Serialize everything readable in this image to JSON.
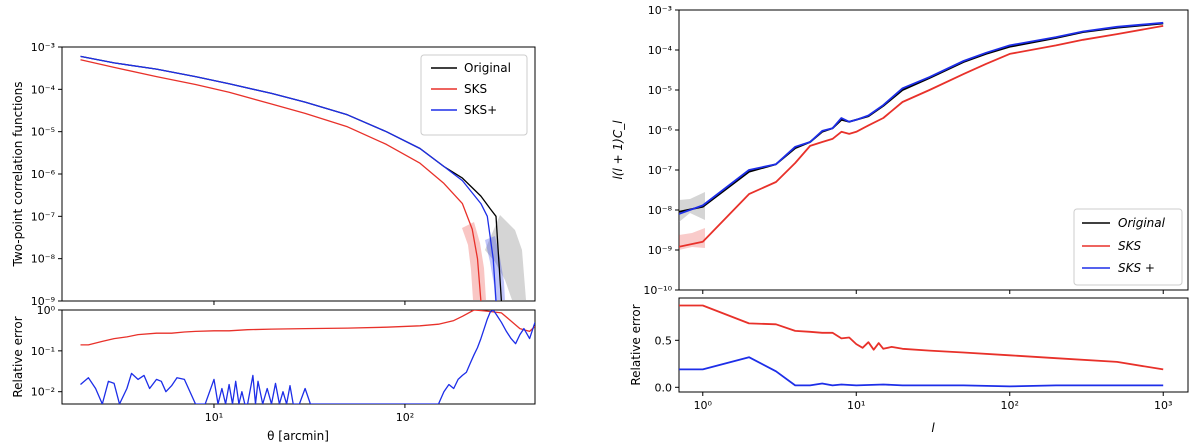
{
  "chart_data": [
    {
      "type": "line",
      "panel": "left-top",
      "xlabel": "θ [arcmin]",
      "ylabel": "Two-point correlation functions",
      "xscale": "log",
      "yscale": "log",
      "xlim": [
        1.6,
        480
      ],
      "ylim": [
        1e-09,
        0.001
      ],
      "xticks": [
        {
          "v": 10,
          "label": "10¹"
        },
        {
          "v": 100,
          "label": "10²"
        }
      ],
      "yticks": [
        {
          "v": 1e-09,
          "label": "10⁻⁹"
        },
        {
          "v": 1e-08,
          "label": "10⁻⁸"
        },
        {
          "v": 1e-07,
          "label": "10⁻⁷"
        },
        {
          "v": 1e-06,
          "label": "10⁻⁶"
        },
        {
          "v": 1e-05,
          "label": "10⁻⁵"
        },
        {
          "v": 0.0001,
          "label": "10⁻⁴"
        },
        {
          "v": 0.001,
          "label": "10⁻³"
        }
      ],
      "legend": {
        "position": "top-right",
        "entries": [
          "Original",
          "SKS",
          "SKS+"
        ]
      },
      "series": [
        {
          "name": "Original",
          "color": "#000000",
          "x": [
            2,
            3,
            5,
            8,
            12,
            20,
            30,
            50,
            80,
            120,
            160,
            200,
            250,
            280,
            300,
            310,
            320
          ],
          "y": [
            0.0006,
            0.00042,
            0.0003,
            0.0002,
            0.000135,
            8e-05,
            5e-05,
            2.5e-05,
            1e-05,
            4e-06,
            1.5e-06,
            8e-07,
            3e-07,
            1.5e-07,
            1e-07,
            1e-08,
            1e-09
          ]
        },
        {
          "name": "SKS",
          "color": "#e8312a",
          "x": [
            2,
            3,
            5,
            8,
            12,
            20,
            30,
            50,
            80,
            120,
            160,
            200,
            225,
            240,
            250
          ],
          "y": [
            0.0005,
            0.00033,
            0.0002,
            0.00013,
            8.5e-05,
            4.5e-05,
            2.7e-05,
            1.3e-05,
            5e-06,
            1.8e-06,
            6e-07,
            2e-07,
            5e-08,
            1e-08,
            1e-09
          ]
        },
        {
          "name": "SKS+",
          "color": "#1d2ee8",
          "x": [
            2,
            3,
            5,
            8,
            12,
            20,
            30,
            50,
            80,
            120,
            160,
            200,
            250,
            270,
            290,
            300
          ],
          "y": [
            0.0006,
            0.00042,
            0.0003,
            0.0002,
            0.000135,
            8e-05,
            5e-05,
            2.5e-05,
            1e-05,
            4e-06,
            1.5e-06,
            7e-07,
            2e-07,
            1e-07,
            1e-08,
            1e-09
          ]
        }
      ]
    },
    {
      "type": "line",
      "panel": "left-bottom",
      "xlabel": "θ [arcmin]",
      "ylabel": "Relative error",
      "xscale": "log",
      "yscale": "log",
      "xlim": [
        1.6,
        480
      ],
      "ylim": [
        0.005,
        1
      ],
      "xticks": [
        {
          "v": 10,
          "label": "10¹"
        },
        {
          "v": 100,
          "label": "10²"
        }
      ],
      "yticks": [
        {
          "v": 0.01,
          "label": "10⁻²"
        },
        {
          "v": 0.1,
          "label": "10⁻¹"
        },
        {
          "v": 1,
          "label": "10⁰"
        }
      ],
      "series": [
        {
          "name": "SKS",
          "color": "#e8312a",
          "x": [
            2,
            2.2,
            2.6,
            3,
            3.5,
            4,
            5,
            6,
            7,
            8,
            10,
            12,
            15,
            20,
            30,
            50,
            80,
            120,
            150,
            180,
            200,
            230,
            260,
            290,
            320,
            350,
            400,
            450,
            480
          ],
          "y": [
            0.14,
            0.14,
            0.17,
            0.2,
            0.22,
            0.25,
            0.27,
            0.27,
            0.29,
            0.3,
            0.31,
            0.31,
            0.33,
            0.34,
            0.35,
            0.36,
            0.38,
            0.41,
            0.45,
            0.55,
            0.7,
            1.0,
            0.95,
            0.9,
            0.85,
            0.6,
            0.35,
            0.3,
            0.4
          ]
        },
        {
          "name": "SKS+",
          "color": "#1d2ee8",
          "x": [
            2,
            2.2,
            2.4,
            2.6,
            2.8,
            3,
            3.2,
            3.5,
            3.7,
            4,
            4.3,
            4.6,
            5,
            5.3,
            5.6,
            6,
            6.4,
            7,
            8,
            9,
            10,
            10.5,
            11,
            11.5,
            12,
            12.5,
            13,
            13.5,
            14,
            14.5,
            15,
            16,
            16.5,
            17,
            18,
            19,
            20,
            21,
            22,
            23,
            24,
            25,
            26,
            28,
            30,
            32,
            150,
            160,
            170,
            180,
            190,
            200,
            210,
            220,
            230,
            240,
            250,
            260,
            270,
            280,
            290,
            300,
            320,
            340,
            360,
            380,
            400,
            420,
            450,
            480
          ],
          "y": [
            0.015,
            0.022,
            0.012,
            0.005,
            0.018,
            0.016,
            0.005,
            0.012,
            0.028,
            0.02,
            0.025,
            0.012,
            0.02,
            0.018,
            0.01,
            0.014,
            0.022,
            0.02,
            0.005,
            0.005,
            0.02,
            0.005,
            0.012,
            0.005,
            0.015,
            0.005,
            0.018,
            0.005,
            0.01,
            0.005,
            0.005,
            0.025,
            0.005,
            0.018,
            0.005,
            0.012,
            0.005,
            0.016,
            0.005,
            0.01,
            0.005,
            0.014,
            0.005,
            0.005,
            0.012,
            0.005,
            0.005,
            0.01,
            0.015,
            0.012,
            0.02,
            0.025,
            0.03,
            0.05,
            0.08,
            0.12,
            0.2,
            0.35,
            0.6,
            0.9,
            1.0,
            0.8,
            0.5,
            0.3,
            0.2,
            0.15,
            0.25,
            0.35,
            0.2,
            0.5
          ]
        }
      ]
    },
    {
      "type": "line",
      "panel": "right-top",
      "xlabel": "l",
      "ylabel": "l(l + 1)C_l",
      "xscale": "log",
      "yscale": "log",
      "xlim": [
        0.7,
        1450
      ],
      "ylim": [
        1e-10,
        0.001
      ],
      "xticks": [
        {
          "v": 1,
          "label": "10⁰"
        },
        {
          "v": 10,
          "label": "10¹"
        },
        {
          "v": 100,
          "label": "10²"
        },
        {
          "v": 1000,
          "label": "10³"
        }
      ],
      "yticks": [
        {
          "v": 1e-10,
          "label": "10⁻¹⁰"
        },
        {
          "v": 1e-09,
          "label": "10⁻⁹"
        },
        {
          "v": 1e-08,
          "label": "10⁻⁸"
        },
        {
          "v": 1e-07,
          "label": "10⁻⁷"
        },
        {
          "v": 1e-06,
          "label": "10⁻⁶"
        },
        {
          "v": 1e-05,
          "label": "10⁻⁵"
        },
        {
          "v": 0.0001,
          "label": "10⁻⁴"
        },
        {
          "v": 0.001,
          "label": "10⁻³"
        }
      ],
      "legend": {
        "position": "bottom-right",
        "entries": [
          "Original",
          "SKS",
          "SKS +"
        ]
      },
      "series": [
        {
          "name": "Original",
          "color": "#000000",
          "x": [
            0.7,
            1,
            2,
            3,
            4,
            5,
            6,
            7,
            8,
            9,
            10,
            12,
            15,
            20,
            30,
            50,
            70,
            100,
            200,
            300,
            500,
            1000
          ],
          "y": [
            9e-09,
            1.2e-08,
            9e-08,
            1.4e-07,
            3.5e-07,
            5e-07,
            9e-07,
            1.1e-06,
            1.8e-06,
            1.6e-06,
            1.8e-06,
            2.2e-06,
            4e-06,
            1e-05,
            2e-05,
            5e-05,
            8e-05,
            0.00012,
            0.0002,
            0.00028,
            0.00036,
            0.00046
          ]
        },
        {
          "name": "SKS",
          "color": "#e8312a",
          "x": [
            0.7,
            1,
            2,
            3,
            4,
            5,
            6,
            7,
            8,
            9,
            10,
            12,
            15,
            20,
            30,
            50,
            70,
            100,
            200,
            300,
            500,
            1000
          ],
          "y": [
            1.2e-09,
            1.6e-09,
            2.5e-08,
            5e-08,
            1.5e-07,
            4e-07,
            5e-07,
            6e-07,
            9e-07,
            8e-07,
            9e-07,
            1.3e-06,
            2e-06,
            5e-06,
            1e-05,
            2.5e-05,
            4.5e-05,
            8e-05,
            0.00013,
            0.00018,
            0.00025,
            0.0004
          ]
        },
        {
          "name": "SKS +",
          "color": "#1d2ee8",
          "x": [
            0.7,
            1,
            2,
            3,
            4,
            5,
            6,
            7,
            8,
            9,
            10,
            12,
            15,
            20,
            30,
            50,
            70,
            100,
            200,
            300,
            500,
            1000
          ],
          "y": [
            8e-09,
            1.3e-08,
            1e-07,
            1.4e-07,
            3.8e-07,
            5e-07,
            9.5e-07,
            1.1e-06,
            2e-06,
            1.6e-06,
            1.8e-06,
            2.3e-06,
            4.2e-06,
            1.1e-05,
            2.1e-05,
            5.3e-05,
            8.5e-05,
            0.00013,
            0.00021,
            0.00029,
            0.00038,
            0.00048
          ]
        }
      ]
    },
    {
      "type": "line",
      "panel": "right-bottom",
      "xlabel": "l",
      "ylabel": "Relative error",
      "xscale": "log",
      "yscale": "linear",
      "xlim": [
        0.7,
        1450
      ],
      "ylim": [
        -0.05,
        0.95
      ],
      "xticks": [
        {
          "v": 1,
          "label": "10⁰"
        },
        {
          "v": 10,
          "label": "10¹"
        },
        {
          "v": 100,
          "label": "10²"
        },
        {
          "v": 1000,
          "label": "10³"
        }
      ],
      "yticks": [
        {
          "v": 0,
          "label": "0.0"
        },
        {
          "v": 0.5,
          "label": "0.5"
        }
      ],
      "series": [
        {
          "name": "SKS",
          "color": "#e8312a",
          "x": [
            0.7,
            1,
            2,
            3,
            4,
            5,
            6,
            7,
            8,
            9,
            10,
            11,
            12,
            13,
            14,
            15,
            17,
            20,
            30,
            50,
            100,
            200,
            500,
            1000
          ],
          "y": [
            0.87,
            0.87,
            0.68,
            0.67,
            0.6,
            0.59,
            0.58,
            0.58,
            0.52,
            0.53,
            0.46,
            0.42,
            0.48,
            0.4,
            0.47,
            0.41,
            0.43,
            0.41,
            0.39,
            0.37,
            0.34,
            0.31,
            0.27,
            0.19
          ]
        },
        {
          "name": "SKS +",
          "color": "#1d2ee8",
          "x": [
            0.7,
            1,
            2,
            3,
            4,
            5,
            6,
            7,
            8,
            10,
            15,
            20,
            30,
            50,
            100,
            200,
            500,
            1000
          ],
          "y": [
            0.19,
            0.19,
            0.32,
            0.17,
            0.02,
            0.02,
            0.04,
            0.02,
            0.03,
            0.02,
            0.03,
            0.02,
            0.02,
            0.02,
            0.01,
            0.02,
            0.02,
            0.02
          ]
        }
      ]
    }
  ]
}
